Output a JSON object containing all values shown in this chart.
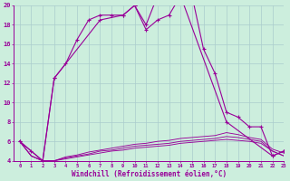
{
  "x": [
    0,
    1,
    2,
    3,
    4,
    5,
    6,
    7,
    8,
    9,
    10,
    11,
    12,
    13,
    14,
    15,
    16,
    17,
    18,
    19,
    20,
    21,
    22,
    23
  ],
  "line1_x": [
    0,
    1,
    2,
    3,
    4,
    5,
    6,
    7,
    8,
    9,
    10,
    11,
    12,
    13,
    14,
    15,
    16,
    17,
    18,
    19,
    20,
    21,
    22,
    23
  ],
  "line1_y": [
    6.0,
    5.0,
    4.0,
    12.5,
    14.0,
    16.5,
    18.5,
    19.0,
    19.0,
    19.0,
    20.0,
    17.5,
    18.5,
    19.0,
    21.0,
    21.0,
    15.5,
    13.0,
    9.0,
    8.5,
    7.5,
    7.5,
    4.5,
    5.0
  ],
  "line2_x": [
    0,
    2,
    3,
    7,
    9,
    10,
    11,
    12,
    13,
    14,
    18,
    22,
    23
  ],
  "line2_y": [
    6.0,
    4.0,
    12.5,
    18.5,
    19.0,
    20.0,
    18.0,
    21.0,
    21.0,
    21.0,
    8.0,
    4.5,
    5.0
  ],
  "flat1_x": [
    0,
    1,
    2,
    3,
    4,
    5,
    6,
    7,
    8,
    9,
    10,
    11,
    12,
    13,
    14,
    15,
    16,
    17,
    18,
    19,
    20,
    21,
    22,
    23
  ],
  "flat1_y": [
    6.0,
    4.5,
    4.0,
    4.0,
    4.2,
    4.4,
    4.6,
    4.8,
    5.0,
    5.1,
    5.3,
    5.4,
    5.5,
    5.6,
    5.8,
    5.9,
    6.0,
    6.1,
    6.2,
    6.1,
    6.0,
    5.8,
    5.0,
    4.5
  ],
  "flat2_x": [
    0,
    1,
    2,
    3,
    4,
    5,
    6,
    7,
    8,
    9,
    10,
    11,
    12,
    13,
    14,
    15,
    16,
    17,
    18,
    19,
    20,
    21,
    22,
    23
  ],
  "flat2_y": [
    6.0,
    4.5,
    4.0,
    4.0,
    4.3,
    4.5,
    4.7,
    5.0,
    5.1,
    5.3,
    5.5,
    5.6,
    5.7,
    5.8,
    6.0,
    6.1,
    6.2,
    6.3,
    6.5,
    6.4,
    6.2,
    6.0,
    5.0,
    4.5
  ],
  "flat3_x": [
    0,
    1,
    2,
    3,
    4,
    5,
    6,
    7,
    8,
    9,
    10,
    11,
    12,
    13,
    14,
    15,
    16,
    17,
    18,
    19,
    20,
    21,
    22,
    23
  ],
  "flat3_y": [
    6.0,
    4.5,
    4.0,
    4.0,
    4.4,
    4.6,
    4.9,
    5.1,
    5.3,
    5.5,
    5.7,
    5.8,
    6.0,
    6.1,
    6.3,
    6.4,
    6.5,
    6.6,
    6.9,
    6.7,
    6.4,
    6.2,
    5.2,
    4.8
  ],
  "xlim": [
    -0.5,
    23
  ],
  "ylim": [
    4,
    20
  ],
  "yticks": [
    4,
    6,
    8,
    10,
    12,
    14,
    16,
    18,
    20
  ],
  "xticks": [
    0,
    1,
    2,
    3,
    4,
    5,
    6,
    7,
    8,
    9,
    10,
    11,
    12,
    13,
    14,
    15,
    16,
    17,
    18,
    19,
    20,
    21,
    22,
    23
  ],
  "xlabel": "Windchill (Refroidissement éolien,°C)",
  "line_color": "#990099",
  "bg_color": "#cceedd",
  "grid_color": "#aacccc"
}
